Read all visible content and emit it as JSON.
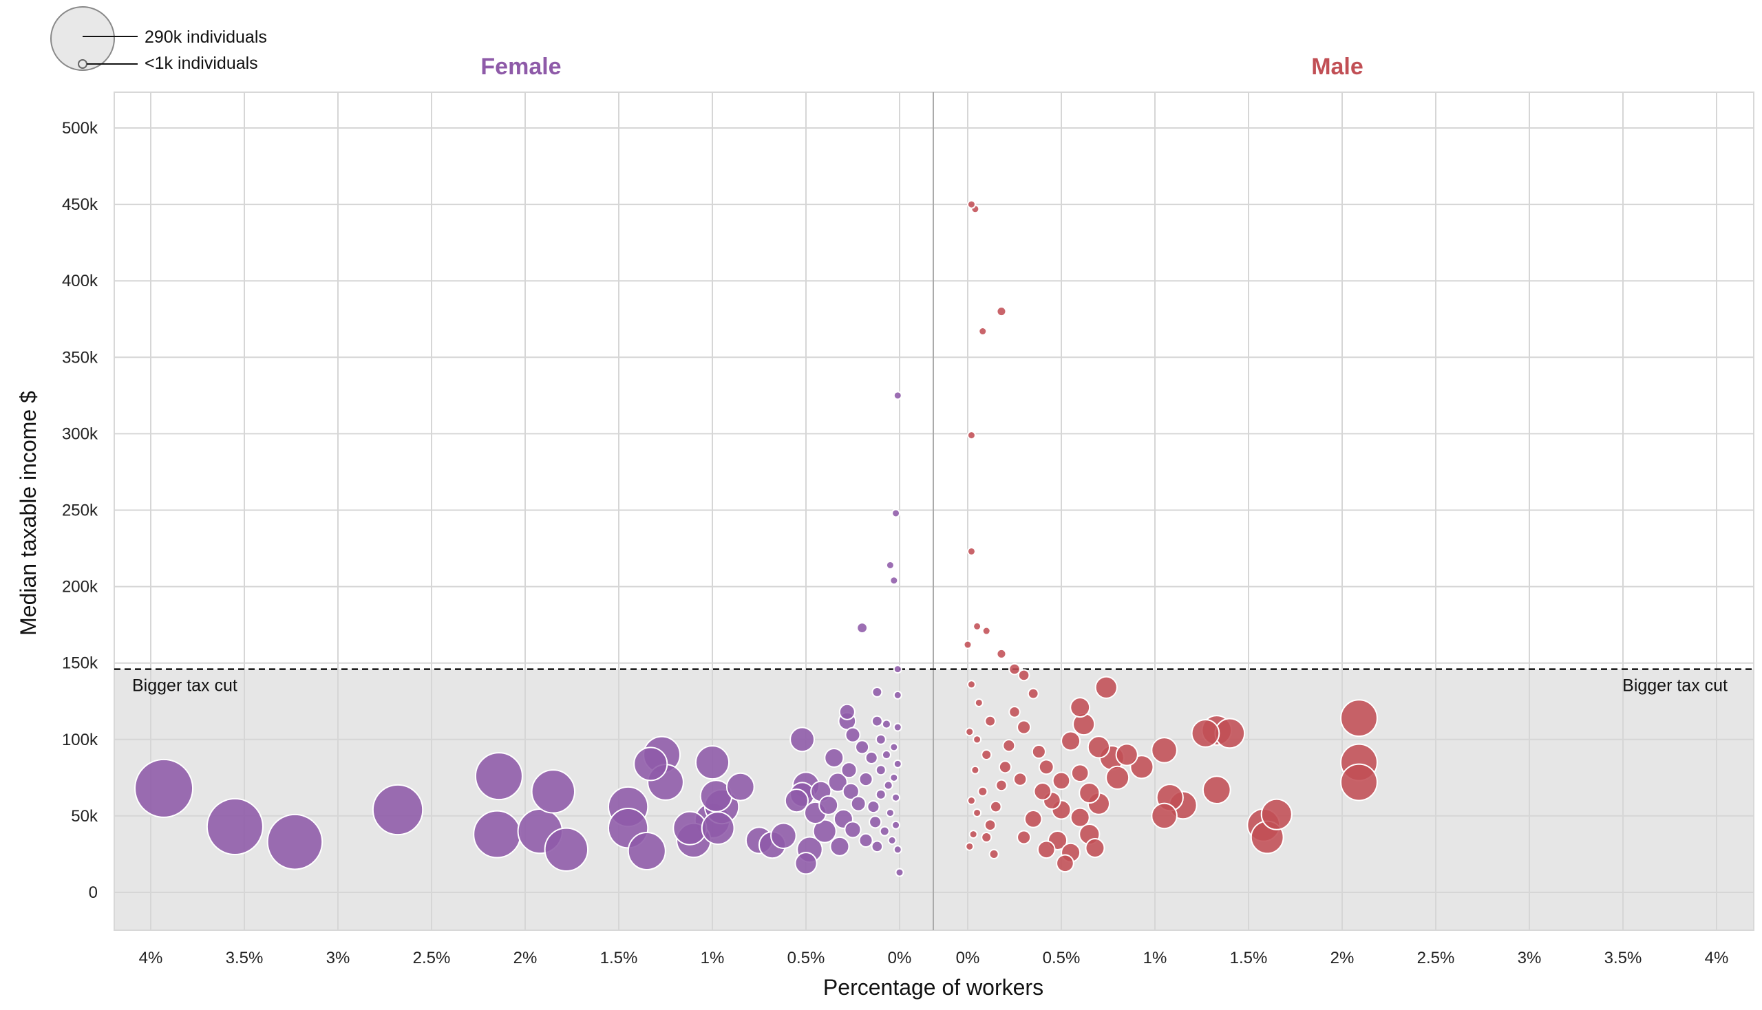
{
  "chart_data": {
    "type": "scatter",
    "subtype": "bubble",
    "xlabel": "Percentage of workers",
    "ylabel": "Median taxable income $",
    "ylim": [
      -25000,
      520000
    ],
    "y_ticks": [
      0,
      50000,
      100000,
      150000,
      200000,
      250000,
      300000,
      350000,
      400000,
      450000,
      500000
    ],
    "y_tick_labels": [
      "0",
      "50k",
      "100k",
      "150k",
      "200k",
      "250k",
      "300k",
      "350k",
      "400k",
      "450k",
      "500k"
    ],
    "x_ticks": [
      4,
      3.5,
      3,
      2.5,
      2,
      1.5,
      1,
      0.5,
      0
    ],
    "x_tick_labels_female": [
      "4%",
      "3.5%",
      "3%",
      "2.5%",
      "2%",
      "1.5%",
      "1%",
      "0.5%",
      "0%"
    ],
    "x_tick_labels_male": [
      "0%",
      "0.5%",
      "1%",
      "1.5%",
      "2%",
      "2.5%",
      "3%",
      "3.5%",
      "4%"
    ],
    "threshold": {
      "value": 146000,
      "label_left": "Bigger tax cut",
      "label_right": "Bigger tax cut",
      "shade_color": "#e6e6e6"
    },
    "size_legend": {
      "large_label": "290k individuals",
      "small_label": "<1k individuals",
      "large_value": 290000,
      "small_value": 1000
    },
    "grid": true,
    "series": [
      {
        "name": "Female",
        "color": "#8e5aa8",
        "x_direction": "reversed",
        "points": [
          {
            "x": 3.93,
            "y": 68000,
            "n": 290000
          },
          {
            "x": 3.55,
            "y": 43000,
            "n": 270000
          },
          {
            "x": 3.23,
            "y": 33000,
            "n": 260000
          },
          {
            "x": 2.68,
            "y": 54000,
            "n": 215000
          },
          {
            "x": 2.14,
            "y": 76000,
            "n": 190000
          },
          {
            "x": 2.15,
            "y": 38000,
            "n": 190000
          },
          {
            "x": 1.92,
            "y": 40000,
            "n": 170000
          },
          {
            "x": 1.85,
            "y": 66000,
            "n": 160000
          },
          {
            "x": 1.78,
            "y": 28000,
            "n": 160000
          },
          {
            "x": 1.45,
            "y": 56000,
            "n": 135000
          },
          {
            "x": 1.45,
            "y": 42000,
            "n": 135000
          },
          {
            "x": 1.35,
            "y": 27000,
            "n": 120000
          },
          {
            "x": 1.27,
            "y": 90000,
            "n": 115000
          },
          {
            "x": 1.33,
            "y": 84000,
            "n": 95000
          },
          {
            "x": 1.25,
            "y": 72000,
            "n": 110000
          },
          {
            "x": 1.12,
            "y": 42000,
            "n": 95000
          },
          {
            "x": 1.1,
            "y": 34000,
            "n": 100000
          },
          {
            "x": 1.0,
            "y": 85000,
            "n": 95000
          },
          {
            "x": 0.98,
            "y": 63000,
            "n": 85000
          },
          {
            "x": 0.95,
            "y": 56000,
            "n": 100000
          },
          {
            "x": 1.0,
            "y": 47000,
            "n": 105000
          },
          {
            "x": 0.97,
            "y": 42000,
            "n": 90000
          },
          {
            "x": 0.85,
            "y": 69000,
            "n": 65000
          },
          {
            "x": 0.75,
            "y": 34000,
            "n": 60000
          },
          {
            "x": 0.68,
            "y": 31000,
            "n": 60000
          },
          {
            "x": 0.62,
            "y": 37000,
            "n": 55000
          },
          {
            "x": 0.52,
            "y": 100000,
            "n": 50000
          },
          {
            "x": 0.5,
            "y": 70000,
            "n": 60000
          },
          {
            "x": 0.52,
            "y": 64000,
            "n": 50000
          },
          {
            "x": 0.55,
            "y": 60000,
            "n": 45000
          },
          {
            "x": 0.48,
            "y": 28000,
            "n": 55000
          },
          {
            "x": 0.5,
            "y": 19000,
            "n": 40000
          },
          {
            "x": 0.45,
            "y": 52000,
            "n": 40000
          },
          {
            "x": 0.4,
            "y": 40000,
            "n": 45000
          },
          {
            "x": 0.42,
            "y": 66000,
            "n": 35000
          },
          {
            "x": 0.38,
            "y": 57000,
            "n": 30000
          },
          {
            "x": 0.35,
            "y": 88000,
            "n": 30000
          },
          {
            "x": 0.33,
            "y": 72000,
            "n": 30000
          },
          {
            "x": 0.32,
            "y": 30000,
            "n": 30000
          },
          {
            "x": 0.3,
            "y": 48000,
            "n": 30000
          },
          {
            "x": 0.28,
            "y": 112000,
            "n": 25000
          },
          {
            "x": 0.28,
            "y": 118000,
            "n": 20000
          },
          {
            "x": 0.25,
            "y": 103000,
            "n": 18000
          },
          {
            "x": 0.27,
            "y": 80000,
            "n": 20000
          },
          {
            "x": 0.26,
            "y": 66000,
            "n": 22000
          },
          {
            "x": 0.25,
            "y": 41000,
            "n": 22000
          },
          {
            "x": 0.22,
            "y": 58000,
            "n": 18000
          },
          {
            "x": 0.2,
            "y": 95000,
            "n": 15000
          },
          {
            "x": 0.18,
            "y": 34000,
            "n": 15000
          },
          {
            "x": 0.18,
            "y": 74000,
            "n": 15000
          },
          {
            "x": 0.15,
            "y": 88000,
            "n": 12000
          },
          {
            "x": 0.14,
            "y": 56000,
            "n": 12000
          },
          {
            "x": 0.13,
            "y": 46000,
            "n": 12000
          },
          {
            "x": 0.12,
            "y": 131000,
            "n": 8000
          },
          {
            "x": 0.12,
            "y": 112000,
            "n": 9000
          },
          {
            "x": 0.12,
            "y": 30000,
            "n": 10000
          },
          {
            "x": 0.1,
            "y": 100000,
            "n": 8000
          },
          {
            "x": 0.1,
            "y": 80000,
            "n": 8000
          },
          {
            "x": 0.1,
            "y": 64000,
            "n": 8000
          },
          {
            "x": 0.08,
            "y": 40000,
            "n": 7000
          },
          {
            "x": 0.07,
            "y": 110000,
            "n": 6000
          },
          {
            "x": 0.07,
            "y": 90000,
            "n": 6000
          },
          {
            "x": 0.06,
            "y": 70000,
            "n": 6000
          },
          {
            "x": 0.05,
            "y": 52000,
            "n": 5000
          },
          {
            "x": 0.04,
            "y": 34000,
            "n": 5000
          },
          {
            "x": 0.03,
            "y": 95000,
            "n": 4000
          },
          {
            "x": 0.03,
            "y": 75000,
            "n": 4000
          },
          {
            "x": 0.02,
            "y": 62000,
            "n": 3000
          },
          {
            "x": 0.02,
            "y": 44000,
            "n": 3000
          },
          {
            "x": 0.01,
            "y": 28000,
            "n": 2000
          },
          {
            "x": 0.01,
            "y": 84000,
            "n": 2000
          },
          {
            "x": 0.01,
            "y": 108000,
            "n": 2000
          },
          {
            "x": 0.2,
            "y": 173000,
            "n": 9000
          },
          {
            "x": 0.05,
            "y": 214000,
            "n": 5000
          },
          {
            "x": 0.03,
            "y": 204000,
            "n": 3000
          },
          {
            "x": 0.02,
            "y": 248000,
            "n": 3000
          },
          {
            "x": 0.01,
            "y": 325000,
            "n": 2000
          },
          {
            "x": 0.01,
            "y": 146000,
            "n": 1500
          },
          {
            "x": 0.01,
            "y": 129000,
            "n": 2000
          },
          {
            "x": 0.0,
            "y": 13000,
            "n": 2000
          }
        ]
      },
      {
        "name": "Male",
        "color": "#c14f55",
        "x_direction": "normal",
        "points": [
          {
            "x": 0.02,
            "y": 450000,
            "n": 2000
          },
          {
            "x": 0.04,
            "y": 447000,
            "n": 3000
          },
          {
            "x": 0.18,
            "y": 380000,
            "n": 7000
          },
          {
            "x": 0.08,
            "y": 367000,
            "n": 4000
          },
          {
            "x": 0.02,
            "y": 299000,
            "n": 2000
          },
          {
            "x": 0.02,
            "y": 223000,
            "n": 2000
          },
          {
            "x": 0.05,
            "y": 174000,
            "n": 3000
          },
          {
            "x": 0.1,
            "y": 171000,
            "n": 5000
          },
          {
            "x": 0.0,
            "y": 162000,
            "n": 2000
          },
          {
            "x": 0.18,
            "y": 156000,
            "n": 7000
          },
          {
            "x": 0.25,
            "y": 146000,
            "n": 10000
          },
          {
            "x": 0.3,
            "y": 142000,
            "n": 10000
          },
          {
            "x": 0.74,
            "y": 134000,
            "n": 40000
          },
          {
            "x": 0.6,
            "y": 121000,
            "n": 32000
          },
          {
            "x": 0.62,
            "y": 110000,
            "n": 40000
          },
          {
            "x": 0.55,
            "y": 99000,
            "n": 30000
          },
          {
            "x": 0.7,
            "y": 95000,
            "n": 40000
          },
          {
            "x": 0.77,
            "y": 88000,
            "n": 50000
          },
          {
            "x": 0.85,
            "y": 90000,
            "n": 40000
          },
          {
            "x": 0.93,
            "y": 82000,
            "n": 45000
          },
          {
            "x": 1.05,
            "y": 93000,
            "n": 55000
          },
          {
            "x": 0.8,
            "y": 75000,
            "n": 45000
          },
          {
            "x": 0.6,
            "y": 78000,
            "n": 25000
          },
          {
            "x": 0.5,
            "y": 73000,
            "n": 25000
          },
          {
            "x": 0.65,
            "y": 65000,
            "n": 35000
          },
          {
            "x": 0.7,
            "y": 58000,
            "n": 40000
          },
          {
            "x": 0.45,
            "y": 60000,
            "n": 25000
          },
          {
            "x": 0.5,
            "y": 54000,
            "n": 30000
          },
          {
            "x": 0.4,
            "y": 66000,
            "n": 25000
          },
          {
            "x": 0.35,
            "y": 48000,
            "n": 25000
          },
          {
            "x": 0.6,
            "y": 49000,
            "n": 30000
          },
          {
            "x": 0.65,
            "y": 38000,
            "n": 35000
          },
          {
            "x": 0.48,
            "y": 34000,
            "n": 30000
          },
          {
            "x": 0.42,
            "y": 28000,
            "n": 25000
          },
          {
            "x": 0.55,
            "y": 26000,
            "n": 30000
          },
          {
            "x": 0.52,
            "y": 19000,
            "n": 25000
          },
          {
            "x": 0.68,
            "y": 29000,
            "n": 30000
          },
          {
            "x": 1.08,
            "y": 62000,
            "n": 60000
          },
          {
            "x": 1.15,
            "y": 57000,
            "n": 65000
          },
          {
            "x": 1.05,
            "y": 50000,
            "n": 55000
          },
          {
            "x": 1.27,
            "y": 104000,
            "n": 65000
          },
          {
            "x": 1.33,
            "y": 106000,
            "n": 75000
          },
          {
            "x": 1.4,
            "y": 104000,
            "n": 75000
          },
          {
            "x": 1.33,
            "y": 67000,
            "n": 65000
          },
          {
            "x": 1.58,
            "y": 44000,
            "n": 90000
          },
          {
            "x": 1.65,
            "y": 51000,
            "n": 80000
          },
          {
            "x": 1.6,
            "y": 36000,
            "n": 90000
          },
          {
            "x": 2.09,
            "y": 114000,
            "n": 115000
          },
          {
            "x": 2.09,
            "y": 85000,
            "n": 115000
          },
          {
            "x": 2.09,
            "y": 72000,
            "n": 115000
          },
          {
            "x": 0.35,
            "y": 130000,
            "n": 9000
          },
          {
            "x": 0.3,
            "y": 108000,
            "n": 15000
          },
          {
            "x": 0.25,
            "y": 118000,
            "n": 10000
          },
          {
            "x": 0.22,
            "y": 96000,
            "n": 12000
          },
          {
            "x": 0.2,
            "y": 82000,
            "n": 12000
          },
          {
            "x": 0.18,
            "y": 70000,
            "n": 10000
          },
          {
            "x": 0.15,
            "y": 56000,
            "n": 10000
          },
          {
            "x": 0.12,
            "y": 44000,
            "n": 10000
          },
          {
            "x": 0.12,
            "y": 112000,
            "n": 9000
          },
          {
            "x": 0.1,
            "y": 90000,
            "n": 8000
          },
          {
            "x": 0.1,
            "y": 36000,
            "n": 8000
          },
          {
            "x": 0.08,
            "y": 66000,
            "n": 7000
          },
          {
            "x": 0.06,
            "y": 124000,
            "n": 5000
          },
          {
            "x": 0.05,
            "y": 100000,
            "n": 5000
          },
          {
            "x": 0.05,
            "y": 52000,
            "n": 5000
          },
          {
            "x": 0.04,
            "y": 80000,
            "n": 4000
          },
          {
            "x": 0.03,
            "y": 38000,
            "n": 4000
          },
          {
            "x": 0.02,
            "y": 136000,
            "n": 2500
          },
          {
            "x": 0.02,
            "y": 60000,
            "n": 3000
          },
          {
            "x": 0.01,
            "y": 105000,
            "n": 2000
          },
          {
            "x": 0.01,
            "y": 30000,
            "n": 2000
          },
          {
            "x": 0.14,
            "y": 25000,
            "n": 7000
          },
          {
            "x": 0.3,
            "y": 36000,
            "n": 15000
          },
          {
            "x": 0.38,
            "y": 92000,
            "n": 15000
          },
          {
            "x": 0.42,
            "y": 82000,
            "n": 18000
          },
          {
            "x": 0.28,
            "y": 74000,
            "n": 14000
          }
        ]
      }
    ]
  }
}
